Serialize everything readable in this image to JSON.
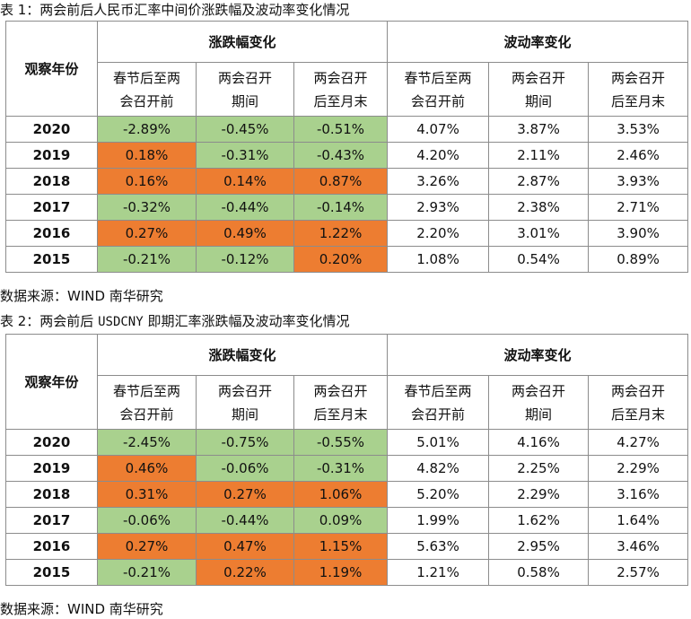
{
  "table1": {
    "caption_prefix": "表 1：两会前后人民币汇率中间价涨跌幅及波动率变化情况",
    "caption_code": "",
    "caption_suffix": "",
    "row_header": "观察年份",
    "group1": "涨跌幅变化",
    "group2": "波动率变化",
    "sub_headers": [
      "春节后至两会召开前",
      "两会召开期间",
      "两会召开后至月末",
      "春节后至两会召开前",
      "两会召开期间",
      "两会召开后至月末"
    ],
    "sub_headers_lines": [
      [
        "春节后至两",
        "会召开前"
      ],
      [
        "两会召开",
        "期间"
      ],
      [
        "两会召开",
        "后至月末"
      ],
      [
        "春节后至两",
        "会召开前"
      ],
      [
        "两会召开",
        "期间"
      ],
      [
        "两会召开",
        "后至月末"
      ]
    ],
    "rows": [
      {
        "year": "2020",
        "values": [
          "-2.89%",
          "-0.45%",
          "-0.51%",
          "4.07%",
          "3.87%",
          "3.53%"
        ],
        "colors": [
          "green",
          "green",
          "green",
          "plain",
          "plain",
          "plain"
        ]
      },
      {
        "year": "2019",
        "values": [
          "0.18%",
          "-0.31%",
          "-0.43%",
          "4.20%",
          "2.11%",
          "2.46%"
        ],
        "colors": [
          "orange",
          "green",
          "green",
          "plain",
          "plain",
          "plain"
        ]
      },
      {
        "year": "2018",
        "values": [
          "0.16%",
          "0.14%",
          "0.87%",
          "3.26%",
          "2.87%",
          "3.93%"
        ],
        "colors": [
          "orange",
          "orange",
          "orange",
          "plain",
          "plain",
          "plain"
        ]
      },
      {
        "year": "2017",
        "values": [
          "-0.32%",
          "-0.44%",
          "-0.14%",
          "2.93%",
          "2.38%",
          "2.71%"
        ],
        "colors": [
          "green",
          "green",
          "green",
          "plain",
          "plain",
          "plain"
        ]
      },
      {
        "year": "2016",
        "values": [
          "0.27%",
          "0.49%",
          "1.22%",
          "2.20%",
          "3.01%",
          "3.90%"
        ],
        "colors": [
          "orange",
          "orange",
          "orange",
          "plain",
          "plain",
          "plain"
        ]
      },
      {
        "year": "2015",
        "values": [
          "-0.21%",
          "-0.12%",
          "0.20%",
          "1.08%",
          "0.54%",
          "0.89%"
        ],
        "colors": [
          "green",
          "green",
          "orange",
          "plain",
          "plain",
          "plain"
        ]
      }
    ],
    "source": "数据来源：WIND 南华研究"
  },
  "table2": {
    "caption_prefix": "表 2：两会前后 ",
    "caption_code": "USDCNY",
    "caption_suffix": " 即期汇率涨跌幅及波动率变化情况",
    "row_header": "观察年份",
    "group1": "涨跌幅变化",
    "group2": "波动率变化",
    "sub_headers_lines": [
      [
        "春节后至两",
        "会召开前"
      ],
      [
        "两会召开",
        "期间"
      ],
      [
        "两会召开",
        "后至月末"
      ],
      [
        "春节后至两",
        "会召开前"
      ],
      [
        "两会召开",
        "期间"
      ],
      [
        "两会召开",
        "后至月末"
      ]
    ],
    "rows": [
      {
        "year": "2020",
        "values": [
          "-2.45%",
          "-0.75%",
          "-0.55%",
          "5.01%",
          "4.16%",
          "4.27%"
        ],
        "colors": [
          "green",
          "green",
          "green",
          "plain",
          "plain",
          "plain"
        ]
      },
      {
        "year": "2019",
        "values": [
          "0.46%",
          "-0.06%",
          "-0.31%",
          "4.82%",
          "2.25%",
          "2.29%"
        ],
        "colors": [
          "orange",
          "green",
          "green",
          "plain",
          "plain",
          "plain"
        ]
      },
      {
        "year": "2018",
        "values": [
          "0.31%",
          "0.27%",
          "1.06%",
          "5.20%",
          "2.29%",
          "3.16%"
        ],
        "colors": [
          "orange",
          "orange",
          "orange",
          "plain",
          "plain",
          "plain"
        ]
      },
      {
        "year": "2017",
        "values": [
          "-0.06%",
          "-0.44%",
          "0.09%",
          "1.99%",
          "1.62%",
          "1.64%"
        ],
        "colors": [
          "green",
          "green",
          "green",
          "plain",
          "plain",
          "plain"
        ]
      },
      {
        "year": "2016",
        "values": [
          "0.27%",
          "0.47%",
          "1.15%",
          "5.63%",
          "2.95%",
          "3.46%"
        ],
        "colors": [
          "orange",
          "orange",
          "orange",
          "plain",
          "plain",
          "plain"
        ]
      },
      {
        "year": "2015",
        "values": [
          "-0.21%",
          "0.22%",
          "1.19%",
          "1.21%",
          "0.58%",
          "2.57%"
        ],
        "colors": [
          "green",
          "orange",
          "orange",
          "plain",
          "plain",
          "plain"
        ]
      }
    ],
    "source": "数据来源：WIND 南华研究"
  },
  "colors": {
    "green": "#a9d18e",
    "orange": "#ed7d31",
    "border": "#8c8c8c"
  }
}
